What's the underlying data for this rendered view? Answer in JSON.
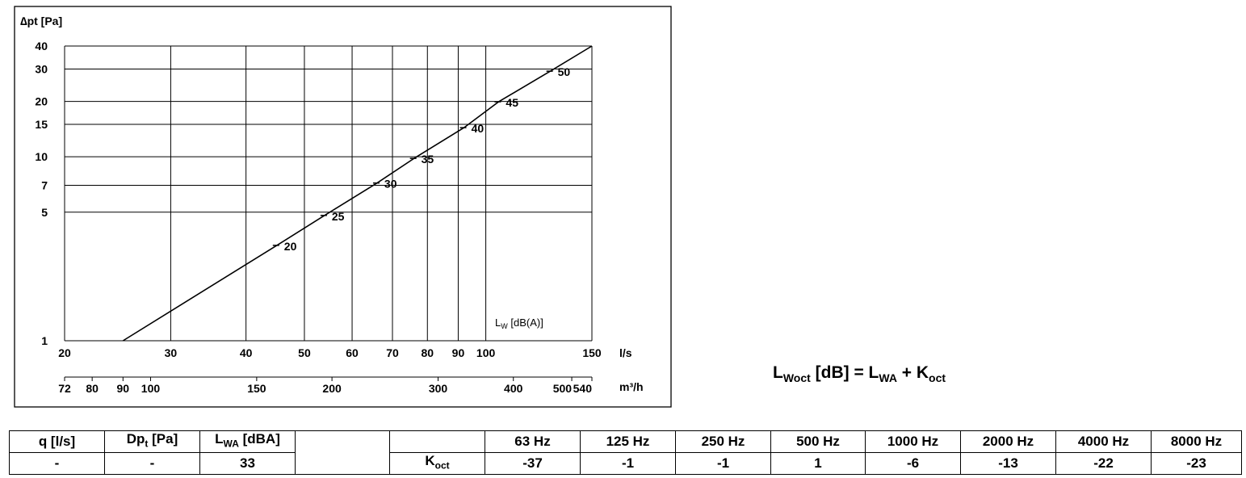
{
  "chart_data": {
    "type": "line",
    "x_scale": "log",
    "y_scale": "log",
    "xlim": [
      20,
      150
    ],
    "ylim": [
      1,
      40
    ],
    "ylabel": "∆pt [Pa]",
    "xlabel": "l/s",
    "x2label": "m³/h",
    "x_ticks": [
      20,
      30,
      40,
      50,
      60,
      70,
      80,
      90,
      100,
      150
    ],
    "x2_ticks": [
      72,
      80,
      90,
      100,
      150,
      200,
      300,
      400,
      500,
      540
    ],
    "y_ticks": [
      1,
      5,
      7,
      10,
      15,
      20,
      30,
      40
    ],
    "grid": true,
    "series": [
      {
        "x": [
          25,
          45,
          54,
          66,
          76,
          92,
          105,
          128,
          150
        ],
        "y": [
          1,
          3.3,
          4.8,
          7.2,
          9.8,
          14.4,
          19.9,
          29.2,
          40
        ]
      }
    ],
    "sound_label": "LW [dB(A)]",
    "sound_label_main": "L",
    "sound_label_sub": "W",
    "sound_label_unit": " [dB(A)]",
    "sound_levels": [
      {
        "label": "20",
        "x": 45,
        "y": 3.3
      },
      {
        "label": "25",
        "x": 54,
        "y": 4.8
      },
      {
        "label": "30",
        "x": 66,
        "y": 7.2
      },
      {
        "label": "35",
        "x": 76,
        "y": 9.8
      },
      {
        "label": "40",
        "x": 92,
        "y": 14.4
      },
      {
        "label": "45",
        "x": 105,
        "y": 19.9
      },
      {
        "label": "50",
        "x": 128,
        "y": 29.2
      }
    ]
  },
  "formula": {
    "lhs_main": "L",
    "lhs_sub": "Woct",
    "lhs_unit": " [dB] = ",
    "rhs1_main": "L",
    "rhs1_sub": "WA",
    "plus": " + ",
    "rhs2_main": "K",
    "rhs2_sub": "oct"
  },
  "table": {
    "q_header": "q [l/s]",
    "dp_header_main": "Dp",
    "dp_header_sub": "t",
    "dp_header_unit": " [Pa]",
    "lwa_header_main": "L",
    "lwa_header_sub": "WA",
    "lwa_header_unit": " [dBA]",
    "q_value": "-",
    "dp_value": "-",
    "lwa_value": "33",
    "koct_label_main": "K",
    "koct_label_sub": "oct",
    "frequencies": [
      "63 Hz",
      "125 Hz",
      "250 Hz",
      "500 Hz",
      "1000 Hz",
      "2000 Hz",
      "4000 Hz",
      "8000 Hz"
    ],
    "koct_values": [
      "-37",
      "-1",
      "-1",
      "1",
      "-6",
      "-13",
      "-22",
      "-23"
    ]
  }
}
